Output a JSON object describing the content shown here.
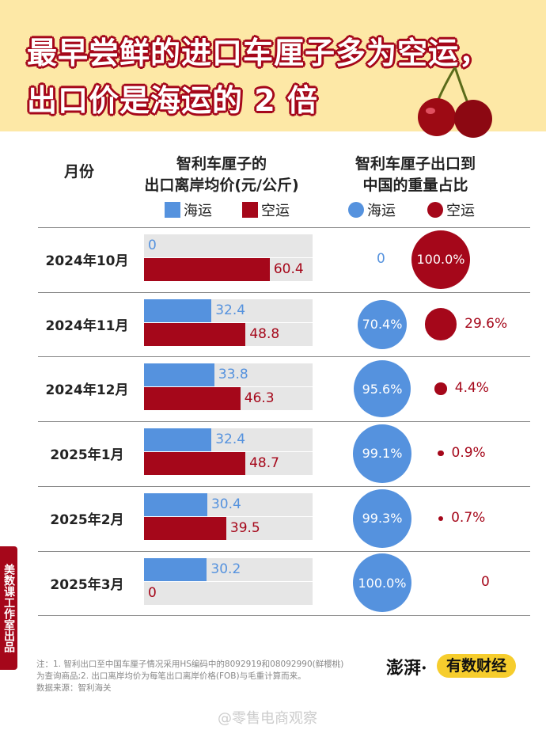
{
  "header": {
    "title_line1": "最早尝鲜的进口车厘子多为空运，",
    "title_line2": "出口价是海运的 2 倍"
  },
  "colors": {
    "sea": "#5592de",
    "air": "#a5071a",
    "header_bg": "#fde8a6"
  },
  "chart_data": {
    "type": "bar",
    "columns": {
      "month": "月份",
      "price_line1": "智利车厘子的",
      "price_line2": "出口离岸均价(元/公斤)",
      "share_line1": "智利车厘子出口到",
      "share_line2": "中国的重量占比"
    },
    "legend": {
      "sea": "海运",
      "air": "空运"
    },
    "categories": [
      "2024年10月",
      "2024年11月",
      "2024年12月",
      "2025年1月",
      "2025年2月",
      "2025年3月"
    ],
    "price_series": [
      {
        "name": "海运",
        "values": [
          0,
          32.4,
          33.8,
          32.4,
          30.4,
          30.2
        ]
      },
      {
        "name": "空运",
        "values": [
          60.4,
          48.8,
          46.3,
          48.7,
          39.5,
          0
        ]
      }
    ],
    "share_series": [
      {
        "name": "海运",
        "values": [
          0,
          70.4,
          95.6,
          99.1,
          99.3,
          100.0
        ],
        "labels": [
          "0",
          "70.4%",
          "95.6%",
          "99.1%",
          "99.3%",
          "100.0%"
        ]
      },
      {
        "name": "空运",
        "values": [
          100.0,
          29.6,
          4.4,
          0.9,
          0.7,
          0
        ],
        "labels": [
          "100.0%",
          "29.6%",
          "4.4%",
          "0.9%",
          "0.7%",
          "0"
        ]
      }
    ]
  },
  "side_tag": "美数课工作室出品",
  "footer": {
    "note1": "注：1. 智利出口至中国车厘子情况采用HS编码中的8092919和08092990(鲜樱桃)",
    "note2": "为查询商品;2. 出口离岸均价为每笔出口离岸价格(FOB)与毛重计算而来。",
    "source": "数据来源：智利海关",
    "logo1": "澎湃·",
    "logo2": "有数财经",
    "watermark": "@零售电商观察"
  }
}
